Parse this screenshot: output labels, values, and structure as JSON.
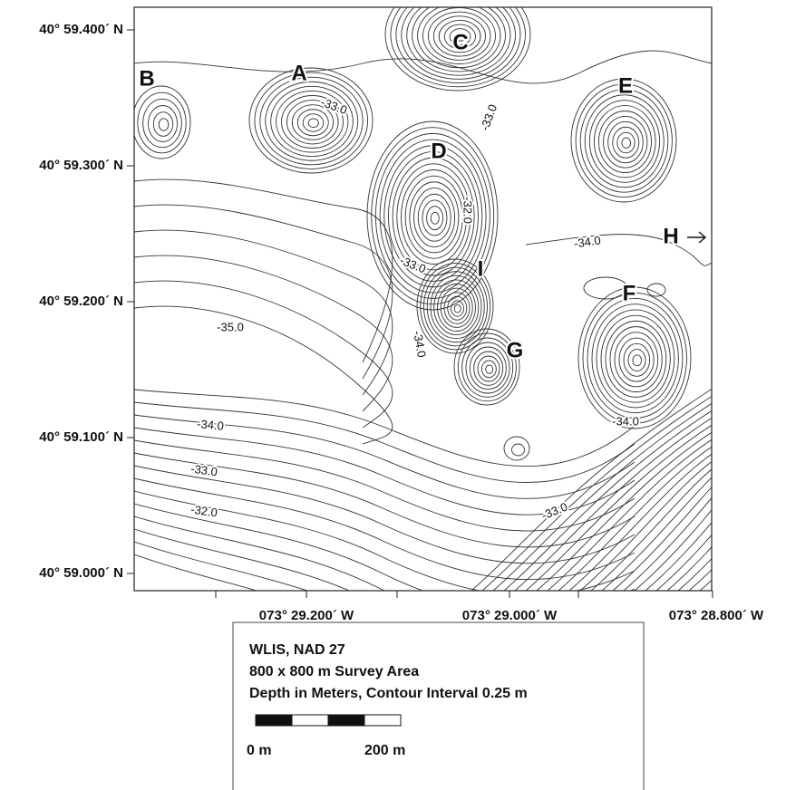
{
  "map": {
    "y_axis_labels": [
      "40° 59.400´ N",
      "40° 59.300´ N",
      "40° 59.200´ N",
      "40° 59.100´ N",
      "40° 59.000´ N"
    ],
    "x_axis_labels": [
      "073° 29.200´ W",
      "073° 29.000´ W",
      "073° 28.800´ W"
    ],
    "site_labels": [
      "A",
      "B",
      "C",
      "D",
      "E",
      "F",
      "G",
      "H",
      "I"
    ],
    "contour_labels": [
      "-33.0",
      "-33.0",
      "-32.0",
      "-33.0",
      "-34.0",
      "-35.0",
      "-34.0",
      "-34.0",
      "-34.0",
      "-33.0",
      "-32.0",
      "-33.0"
    ]
  },
  "legend": {
    "lines": [
      "WLIS, NAD 27",
      "800 x 800 m Survey Area",
      "Depth in Meters, Contour Interval 0.25 m"
    ],
    "scale_labels": [
      "0 m",
      "200 m"
    ]
  }
}
